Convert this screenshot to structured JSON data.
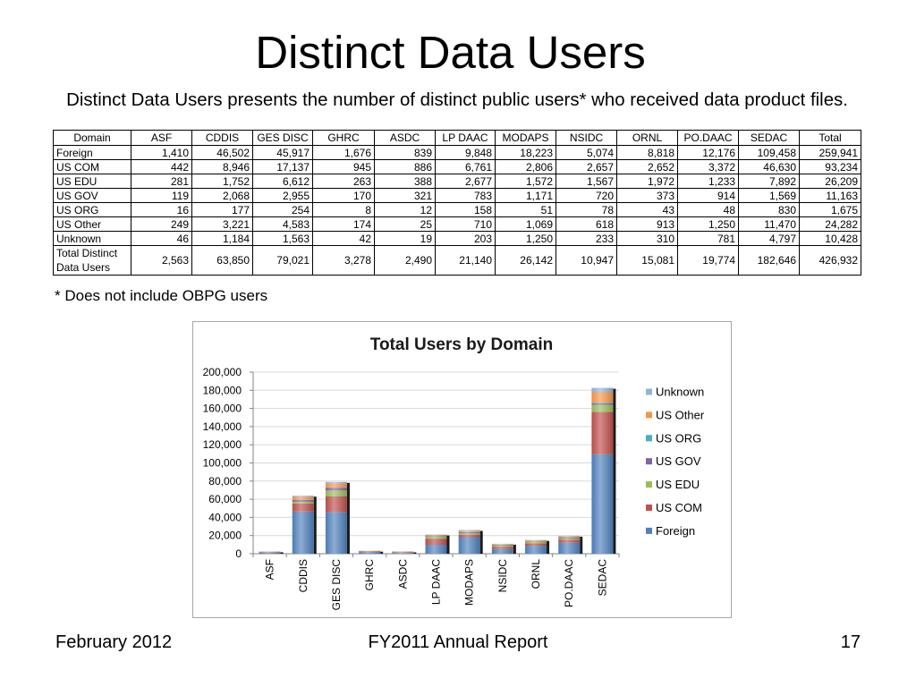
{
  "slide": {
    "title": "Distinct Data Users",
    "subtitle": "Distinct Data Users presents the number of distinct public users* who received data product files.",
    "footnote": "* Does not include OBPG users"
  },
  "table": {
    "headers": [
      "Domain",
      "ASF",
      "CDDIS",
      "GES DISC",
      "GHRC",
      "ASDC",
      "LP DAAC",
      "MODAPS",
      "NSIDC",
      "ORNL",
      "PO.DAAC",
      "SEDAC",
      "Total"
    ],
    "rows": [
      [
        "Foreign",
        "1,410",
        "46,502",
        "45,917",
        "1,676",
        "839",
        "9,848",
        "18,223",
        "5,074",
        "8,818",
        "12,176",
        "109,458",
        "259,941"
      ],
      [
        "US COM",
        "442",
        "8,946",
        "17,137",
        "945",
        "886",
        "6,761",
        "2,806",
        "2,657",
        "2,652",
        "3,372",
        "46,630",
        "93,234"
      ],
      [
        "US EDU",
        "281",
        "1,752",
        "6,612",
        "263",
        "388",
        "2,677",
        "1,572",
        "1,567",
        "1,972",
        "1,233",
        "7,892",
        "26,209"
      ],
      [
        "US GOV",
        "119",
        "2,068",
        "2,955",
        "170",
        "321",
        "783",
        "1,171",
        "720",
        "373",
        "914",
        "1,569",
        "11,163"
      ],
      [
        "US ORG",
        "16",
        "177",
        "254",
        "8",
        "12",
        "158",
        "51",
        "78",
        "43",
        "48",
        "830",
        "1,675"
      ],
      [
        "US Other",
        "249",
        "3,221",
        "4,583",
        "174",
        "25",
        "710",
        "1,069",
        "618",
        "913",
        "1,250",
        "11,470",
        "24,282"
      ],
      [
        "Unknown",
        "46",
        "1,184",
        "1,563",
        "42",
        "19",
        "203",
        "1,250",
        "233",
        "310",
        "781",
        "4,797",
        "10,428"
      ],
      [
        "Total Distinct Data Users",
        "2,563",
        "63,850",
        "79,021",
        "3,278",
        "2,490",
        "21,140",
        "26,142",
        "10,947",
        "15,081",
        "19,774",
        "182,646",
        "426,932"
      ]
    ]
  },
  "chart_data": {
    "type": "bar",
    "stacked": true,
    "title": "Total Users by Domain",
    "ylim": [
      0,
      200000
    ],
    "y_tick_labels": [
      "0",
      "20,000",
      "40,000",
      "60,000",
      "80,000",
      "100,000",
      "120,000",
      "140,000",
      "160,000",
      "180,000",
      "200,000"
    ],
    "grid": true,
    "legend_position": "right",
    "categories": [
      "ASF",
      "CDDIS",
      "GES DISC",
      "GHRC",
      "ASDC",
      "LP DAAC",
      "MODAPS",
      "NSIDC",
      "ORNL",
      "PO.DAAC",
      "SEDAC"
    ],
    "series": [
      {
        "name": "Foreign",
        "color": "#4f81bd",
        "values": [
          1410,
          46502,
          45917,
          1676,
          839,
          9848,
          18223,
          5074,
          8818,
          12176,
          109458
        ]
      },
      {
        "name": "US COM",
        "color": "#c0504d",
        "values": [
          442,
          8946,
          17137,
          945,
          886,
          6761,
          2806,
          2657,
          2652,
          3372,
          46630
        ]
      },
      {
        "name": "US EDU",
        "color": "#9bbb59",
        "values": [
          281,
          1752,
          6612,
          263,
          388,
          2677,
          1572,
          1567,
          1972,
          1233,
          7892
        ]
      },
      {
        "name": "US GOV",
        "color": "#8064a2",
        "values": [
          119,
          2068,
          2955,
          170,
          321,
          783,
          1171,
          720,
          373,
          914,
          1569
        ]
      },
      {
        "name": "US ORG",
        "color": "#4bacc6",
        "values": [
          16,
          177,
          254,
          8,
          12,
          158,
          51,
          78,
          43,
          48,
          830
        ]
      },
      {
        "name": "US Other",
        "color": "#f79646",
        "values": [
          249,
          3221,
          4583,
          174,
          25,
          710,
          1069,
          618,
          913,
          1250,
          11470
        ]
      },
      {
        "name": "Unknown",
        "color": "#95b3d7",
        "values": [
          46,
          1184,
          1563,
          42,
          19,
          203,
          1250,
          233,
          310,
          781,
          4797
        ]
      }
    ]
  },
  "footer": {
    "date": "February 2012",
    "report": "FY2011 Annual Report",
    "page": "17"
  }
}
